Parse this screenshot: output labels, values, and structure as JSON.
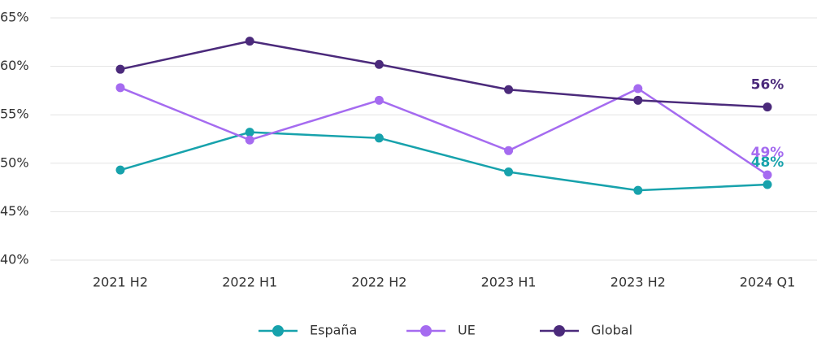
{
  "chart_data": {
    "type": "line",
    "categories": [
      "2021 H2",
      "2022 H1",
      "2022 H2",
      "2023 H1",
      "2023 H2",
      "2024 Q1"
    ],
    "series": [
      {
        "name": "España",
        "color": "#17a2ac",
        "values": [
          49.3,
          53.2,
          52.6,
          49.1,
          47.2,
          47.8
        ],
        "value_labels": [
          null,
          null,
          null,
          null,
          null,
          "48%"
        ]
      },
      {
        "name": "UE",
        "color": "#a56bf0",
        "values": [
          57.8,
          52.4,
          56.5,
          51.3,
          57.7,
          48.8
        ],
        "value_labels": [
          null,
          null,
          null,
          null,
          null,
          "49%"
        ]
      },
      {
        "name": "Global",
        "color": "#4b2a7b",
        "values": [
          59.7,
          62.6,
          60.2,
          57.6,
          56.5,
          55.8
        ],
        "value_labels": [
          null,
          null,
          null,
          null,
          null,
          "56%"
        ]
      }
    ],
    "ylim": [
      40,
      65
    ],
    "yticks": [
      {
        "value": 40,
        "label": "40%"
      },
      {
        "value": 45,
        "label": "45%"
      },
      {
        "value": 50,
        "label": "50%"
      },
      {
        "value": 55,
        "label": "55%"
      },
      {
        "value": 60,
        "label": "60%"
      },
      {
        "value": 65,
        "label": "65%"
      }
    ],
    "grid": true,
    "legend": "bottom"
  }
}
